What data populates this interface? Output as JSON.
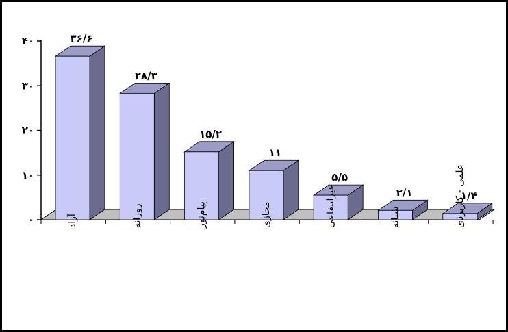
{
  "chart_data": {
    "type": "bar",
    "categories": [
      "آزاد",
      "روزانه",
      "پیام‌نور",
      "مجازی",
      "غیرانتفاعی",
      "شبانه",
      "علمی - کاربردی"
    ],
    "values": [
      36.6,
      28.3,
      15.2,
      11,
      5.5,
      2.1,
      1.4
    ],
    "data_labels": [
      "۳۶/۶",
      "۲۸/۳",
      "۱۵/۲",
      "۱۱",
      "۵/۵",
      "۲/۱",
      "۱/۴"
    ],
    "y_ticks": [
      0,
      10,
      20,
      30,
      40
    ],
    "y_tick_labels": [
      "۰",
      "۱۰",
      "۲۰",
      "۳۰",
      "۴۰"
    ],
    "ylim": [
      0,
      40
    ],
    "grid": false,
    "legend": "none",
    "style": "3d-column",
    "colors": {
      "bar_front": "#c8caf7",
      "bar_side": "#6a6b8f",
      "bar_top": "#9c9dc7",
      "floor": "#c0c0c0"
    }
  }
}
